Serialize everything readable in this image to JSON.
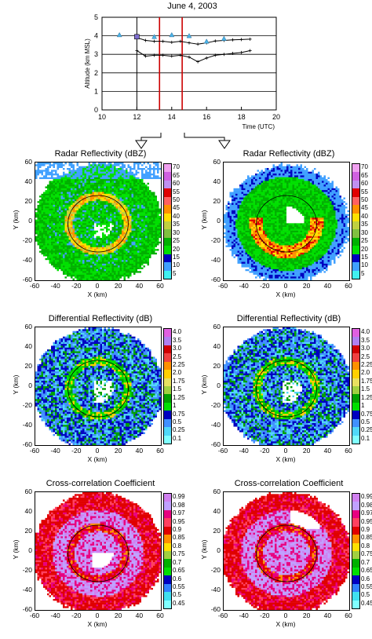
{
  "figure_title": "June 4, 2003",
  "colors": {
    "vertical_line": "#cc0000",
    "triangle": "#4ab3e8",
    "square": "#7f6fd1",
    "series": "#000000"
  },
  "chart_data": [
    {
      "type": "line",
      "title": "June 4, 2003",
      "xlabel": "Time (UTC)",
      "ylabel": "Altitude (km MSL)",
      "xlim": [
        10,
        20
      ],
      "ylim": [
        0,
        5
      ],
      "xticks": [
        "10",
        "12",
        "14",
        "16",
        "18",
        "20"
      ],
      "yticks": [
        "0",
        "1",
        "2",
        "3",
        "4",
        "5"
      ],
      "grid": "horizontal",
      "vertical_lines": [
        12,
        13.3,
        14.6
      ],
      "series": [
        {
          "x": [
            12.0,
            12.5,
            13.0,
            13.5,
            14.0,
            14.5,
            15.0,
            15.5,
            16.0,
            16.5,
            17.0,
            17.5,
            18.0,
            18.5
          ],
          "y": [
            3.9,
            3.75,
            3.7,
            3.7,
            3.65,
            3.7,
            3.62,
            3.55,
            3.62,
            3.72,
            3.75,
            3.78,
            3.8,
            3.82
          ]
        },
        {
          "x": [
            12.0,
            12.5,
            13.0,
            13.5,
            14.0,
            14.5,
            15.0,
            15.5,
            16.0,
            16.5,
            17.0,
            17.5,
            18.0,
            18.5
          ],
          "y": [
            3.2,
            2.9,
            2.95,
            2.95,
            2.9,
            2.95,
            2.85,
            2.6,
            2.8,
            2.95,
            3.0,
            3.05,
            3.1,
            3.2
          ]
        }
      ],
      "triangles": {
        "x": [
          11,
          13,
          14,
          15,
          16,
          17
        ],
        "y": [
          4.05,
          3.95,
          4.05,
          4.0,
          3.7,
          3.85
        ]
      },
      "square": {
        "x": 12,
        "y": 3.95
      }
    },
    {
      "type": "heatmap",
      "title": "Radar Reflectivity (dBZ)",
      "xlabel": "X (km)",
      "ylabel": "Y (km)",
      "xticks": [
        "-60",
        "-40",
        "-20",
        "0",
        "20",
        "40",
        "60"
      ],
      "yticks": [
        "60",
        "40",
        "20",
        "0",
        "-20",
        "-40",
        "-60"
      ],
      "colorbar_labels": [
        "70",
        "65",
        "60",
        "55",
        "50",
        "45",
        "40",
        "35",
        "30",
        "25",
        "20",
        "15",
        "10",
        "5"
      ]
    },
    {
      "type": "heatmap",
      "title": "Radar Reflectivity (dBZ)",
      "xlabel": "X (km)",
      "ylabel": "Y (km)",
      "xticks": [
        "-60",
        "-40",
        "-20",
        "0",
        "20",
        "40",
        "60"
      ],
      "yticks": [
        "60",
        "40",
        "20",
        "0",
        "-20",
        "-40",
        "-60"
      ],
      "colorbar_labels": [
        "70",
        "65",
        "60",
        "55",
        "50",
        "45",
        "40",
        "35",
        "30",
        "25",
        "20",
        "15",
        "10",
        "5"
      ]
    },
    {
      "type": "heatmap",
      "title": "Differential Reflectivity (dB)",
      "xlabel": "X (km)",
      "ylabel": "Y (km)",
      "xticks": [
        "-60",
        "-40",
        "-20",
        "0",
        "20",
        "40",
        "60"
      ],
      "yticks": [
        "60",
        "40",
        "20",
        "0",
        "-20",
        "-40",
        "-60"
      ],
      "colorbar_labels": [
        "4.0",
        "3.5",
        "3.0",
        "2.5",
        "2.25",
        "2.0",
        "1.75",
        "1.5",
        "1.25",
        "1",
        "0.75",
        "0.5",
        "0.25",
        "0.1"
      ]
    },
    {
      "type": "heatmap",
      "title": "Differential Reflectivity (dB)",
      "xlabel": "X (km)",
      "ylabel": "Y (km)",
      "xticks": [
        "-60",
        "-40",
        "-20",
        "0",
        "20",
        "40",
        "60"
      ],
      "yticks": [
        "60",
        "40",
        "20",
        "0",
        "-20",
        "-40",
        "-60"
      ],
      "colorbar_labels": [
        "4.0",
        "3.5",
        "3.0",
        "2.5",
        "2.25",
        "2.0",
        "1.75",
        "1.5",
        "1.25",
        "1",
        "0.75",
        "0.5",
        "0.25",
        "0.1"
      ]
    },
    {
      "type": "heatmap",
      "title": "Cross-correlation Coefficient",
      "xlabel": "X (km)",
      "ylabel": "Y (km)",
      "xticks": [
        "-60",
        "-40",
        "-20",
        "0",
        "20",
        "40",
        "60"
      ],
      "yticks": [
        "60",
        "40",
        "20",
        "0",
        "-20",
        "-40",
        "-60"
      ],
      "colorbar_labels": [
        "0.99",
        "0.98",
        "0.97",
        "0.95",
        "0.9",
        "0.85",
        "0.8",
        "0.75",
        "0.7",
        "0.65",
        "0.6",
        "0.55",
        "0.5",
        "0.45"
      ]
    },
    {
      "type": "heatmap",
      "title": "Cross-correlation Coefficient",
      "xlabel": "X (km)",
      "ylabel": "Y (km)",
      "xticks": [
        "-60",
        "-40",
        "-20",
        "0",
        "20",
        "40",
        "60"
      ],
      "yticks": [
        "60",
        "40",
        "20",
        "0",
        "-20",
        "-40",
        "-60"
      ],
      "colorbar_labels": [
        "0.99",
        "0.98",
        "0.97",
        "0.95",
        "0.9",
        "0.85",
        "0.8",
        "0.75",
        "0.7",
        "0.65",
        "0.6",
        "0.55",
        "0.5",
        "0.45"
      ]
    }
  ]
}
